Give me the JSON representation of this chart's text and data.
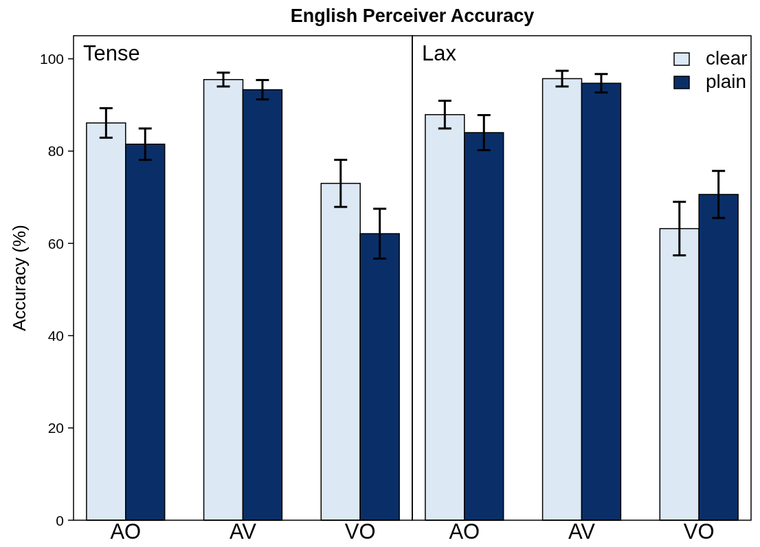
{
  "chart_data": [
    {
      "type": "bar",
      "title": "English Perceiver Accuracy",
      "subtitle": "Tense",
      "ylabel": "Accuracy (%)",
      "categories": [
        "AO",
        "AV",
        "VO"
      ],
      "series": [
        {
          "color": "#dce8f4",
          "values": [
            86.1,
            95.5,
            73.0
          ],
          "errors": [
            3.2,
            1.5,
            5.1
          ]
        },
        {
          "color": "#0a2f68",
          "values": [
            81.5,
            93.3,
            62.1
          ],
          "errors": [
            3.4,
            2.1,
            5.4
          ]
        }
      ],
      "ylim": [
        0,
        105
      ],
      "yticks": [
        0,
        20,
        40,
        60,
        80,
        100
      ],
      "legend": false
    },
    {
      "type": "bar",
      "subtitle": "Lax",
      "categories": [
        "AO",
        "AV",
        "VO"
      ],
      "series": [
        {
          "name": "clear",
          "color": "#dce8f4",
          "values": [
            87.9,
            95.7,
            63.2
          ],
          "errors": [
            3.0,
            1.7,
            5.8
          ]
        },
        {
          "name": "plain",
          "color": "#0a2f68",
          "values": [
            84.0,
            94.7,
            70.6
          ],
          "errors": [
            3.8,
            2.0,
            5.1
          ]
        }
      ],
      "ylim": [
        0,
        105
      ],
      "yticks": [
        0,
        20,
        40,
        60,
        80,
        100
      ],
      "tick_labels": "x",
      "legend": "top right"
    }
  ]
}
